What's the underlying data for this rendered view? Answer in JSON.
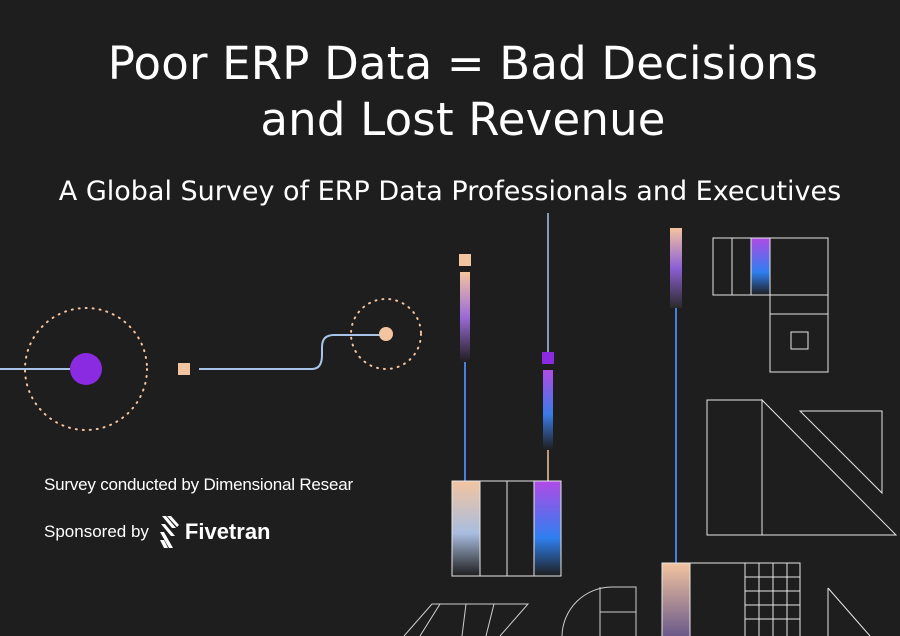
{
  "title_line1": "Poor ERP Data = Bad Decisions",
  "title_line2": "and Lost Revenue",
  "subtitle": "A Global Survey of ERP Data Professionals and Executives",
  "survey_note": "Survey conducted by Dimensional Resear",
  "sponsor_label": "Sponsored by",
  "sponsor_name": "Fivetran",
  "colors": {
    "background": "#1e1e1e",
    "purple": "#8a2be2",
    "peach": "#f3c4a0",
    "blue_line": "#a8c4e8",
    "outline": "#e6e6e6"
  }
}
